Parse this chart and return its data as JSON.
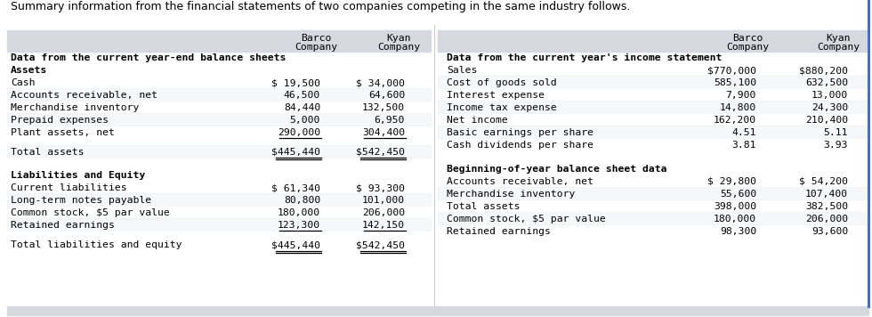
{
  "title": "Summary information from the financial statements of two companies competing in the same industry follows.",
  "header_bg": "#d6d8e0",
  "table_bg": "#ffffff",
  "left_section": {
    "col_headers": [
      [
        "Barco",
        "Company"
      ],
      [
        "Kyan",
        "Company"
      ]
    ],
    "sections": [
      {
        "header": "Data from the current year-end balance sheets",
        "subsection_header": "Assets",
        "rows": [
          [
            "Cash",
            "$ 19,500",
            "$ 34,000"
          ],
          [
            "Accounts receivable, net",
            "46,500",
            "64,600"
          ],
          [
            "Merchandise inventory",
            "84,440",
            "132,500"
          ],
          [
            "Prepaid expenses",
            "5,000",
            "6,950"
          ],
          [
            "Plant assets, net",
            "290,000",
            "304,400"
          ],
          [
            "Total assets",
            "$445,440",
            "$542,450"
          ]
        ],
        "underline_rows": [
          4
        ],
        "double_underline_rows": [
          5
        ],
        "gap_before_total": true
      },
      {
        "header": "Liabilities and Equity",
        "subsection_header": null,
        "rows": [
          [
            "Current liabilities",
            "$ 61,340",
            "$ 93,300"
          ],
          [
            "Long-term notes payable",
            "80,800",
            "101,000"
          ],
          [
            "Common stock, $5 par value",
            "180,000",
            "206,000"
          ],
          [
            "Retained earnings",
            "123,300",
            "142,150"
          ],
          [
            "Total liabilities and equity",
            "$445,440",
            "$542,450"
          ]
        ],
        "underline_rows": [
          3
        ],
        "double_underline_rows": [
          4
        ],
        "gap_before_total": true
      }
    ]
  },
  "right_section": {
    "col_headers": [
      [
        "Barco",
        "Company"
      ],
      [
        "Kyan",
        "Company"
      ]
    ],
    "sections": [
      {
        "header": "Data from the current year's income statement",
        "subsection_header": null,
        "rows": [
          [
            "Sales",
            "$770,000",
            "$880,200"
          ],
          [
            "Cost of goods sold",
            "585,100",
            "632,500"
          ],
          [
            "Interest expense",
            "7,900",
            "13,000"
          ],
          [
            "Income tax expense",
            "14,800",
            "24,300"
          ],
          [
            "Net income",
            "162,200",
            "210,400"
          ],
          [
            "Basic earnings per share",
            "4.51",
            "5.11"
          ],
          [
            "Cash dividends per share",
            "3.81",
            "3.93"
          ]
        ],
        "underline_rows": [],
        "double_underline_rows": [],
        "gap_before_total": false
      },
      {
        "header": "Beginning-of-year balance sheet data",
        "subsection_header": null,
        "rows": [
          [
            "Accounts receivable, net",
            "$ 29,800",
            "$ 54,200"
          ],
          [
            "Merchandise inventory",
            "55,600",
            "107,400"
          ],
          [
            "Total assets",
            "398,000",
            "382,500"
          ],
          [
            "Common stock, $5 par value",
            "180,000",
            "206,000"
          ],
          [
            "Retained earnings",
            "98,300",
            "93,600"
          ]
        ],
        "underline_rows": [],
        "double_underline_rows": [],
        "gap_before_total": false
      }
    ]
  },
  "font_size": 8.2,
  "title_font_size": 9.0
}
